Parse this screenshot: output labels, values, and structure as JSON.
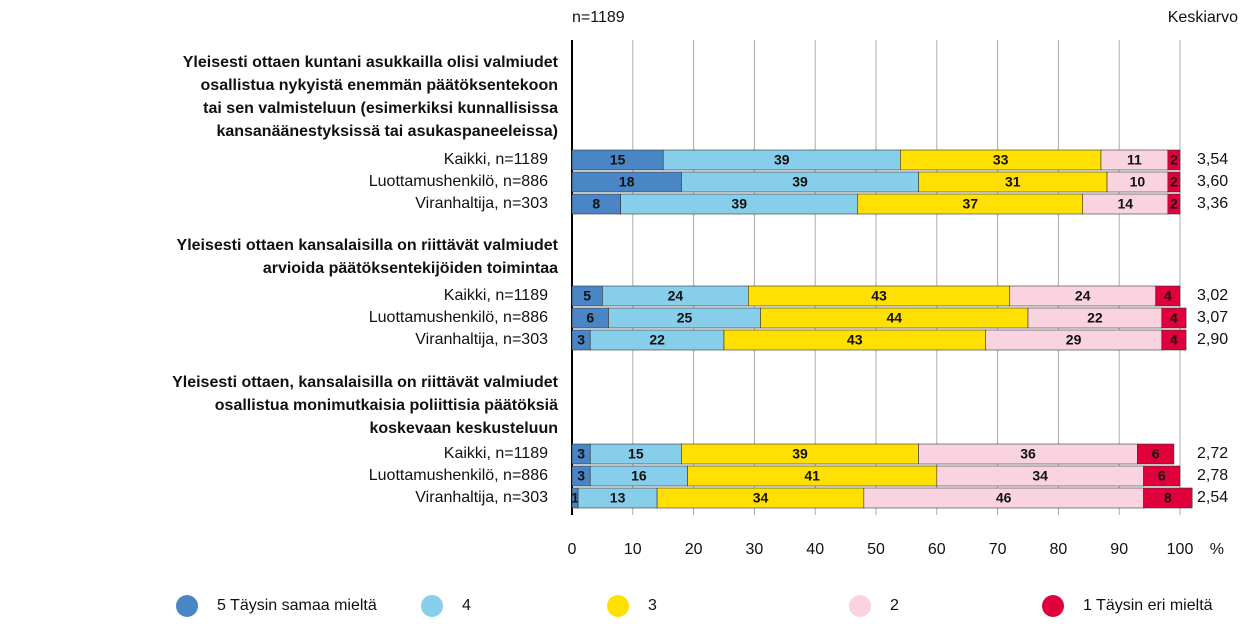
{
  "chart_data": {
    "type": "bar",
    "orientation": "horizontal",
    "stacked": true,
    "note": "n=1189",
    "mean_label": "Keskiarvo",
    "xlabel": "%",
    "group_titles": [
      [
        "Yleisesti ottaen kuntani asukkailla olisi valmiudet",
        "osallistua nykyistä enemmän päätöksentekoon",
        "tai sen valmisteluun (esimerkiksi kunnallisissa",
        "kansanäänestyksissä tai asukaspaneeleissa)"
      ],
      [
        "Yleisesti ottaen kansalaisilla on riittävät valmiudet",
        "arvioida päätöksentekijöiden toimintaa"
      ],
      [
        "Yleisesti ottaen, kansalaisilla on riittävät valmiudet",
        "osallistua monimutkaisia poliittisia päätöksiä",
        "koskevaan keskusteluun"
      ]
    ],
    "categories": [
      "Kaikki, n=1189",
      "Luottamushenkilö, n=886",
      "Viranhaltija, n=303",
      "Kaikki, n=1189",
      "Luottamushenkilö, n=886",
      "Viranhaltija, n=303",
      "Kaikki, n=1189",
      "Luottamushenkilö, n=886",
      "Viranhaltija, n=303"
    ],
    "series": [
      {
        "name": "5 Täysin samaa mieltä",
        "color": "#4a86c5",
        "values": [
          15,
          18,
          8,
          5,
          6,
          3,
          3,
          3,
          1
        ]
      },
      {
        "name": "4",
        "color": "#87ceeb",
        "values": [
          39,
          39,
          39,
          24,
          25,
          22,
          15,
          16,
          13
        ]
      },
      {
        "name": "3",
        "color": "#ffe000",
        "values": [
          33,
          31,
          37,
          43,
          44,
          43,
          39,
          41,
          34
        ]
      },
      {
        "name": "2",
        "color": "#f9d4e0",
        "values": [
          11,
          10,
          14,
          24,
          22,
          29,
          36,
          34,
          46
        ]
      },
      {
        "name": "1 Täysin eri mieltä",
        "color": "#e0003c",
        "values": [
          2,
          2,
          2,
          4,
          4,
          4,
          6,
          6,
          8
        ]
      }
    ],
    "means": {
      "values": [
        3.54,
        3.6,
        3.36,
        3.02,
        3.07,
        2.9,
        2.72,
        2.78,
        2.54
      ],
      "value_labels": [
        "3,54",
        "3,60",
        "3,36",
        "3,02",
        "3,07",
        "2,90",
        "2,72",
        "2,78",
        "2,54"
      ]
    },
    "xlim": [
      0,
      100
    ],
    "xticks": [
      0,
      10,
      20,
      30,
      40,
      50,
      60,
      70,
      80,
      90,
      100
    ],
    "grid": true
  }
}
